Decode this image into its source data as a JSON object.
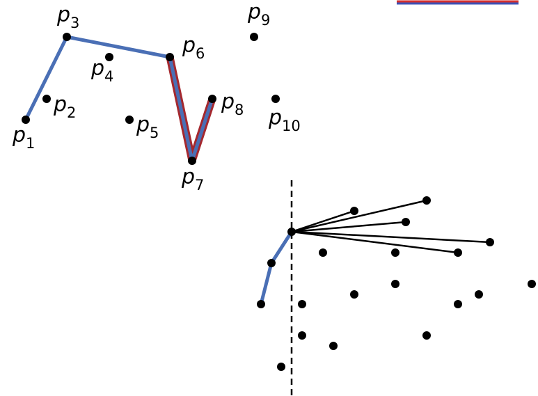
{
  "points": [
    {
      "name": "p1",
      "base": "p",
      "sub": "1"
    },
    {
      "name": "p2",
      "base": "p",
      "sub": "2"
    },
    {
      "name": "p3",
      "base": "p",
      "sub": "3"
    },
    {
      "name": "p4",
      "base": "p",
      "sub": "4"
    },
    {
      "name": "p5",
      "base": "p",
      "sub": "5"
    },
    {
      "name": "p6",
      "base": "p",
      "sub": "6"
    },
    {
      "name": "p7",
      "base": "p",
      "sub": "7"
    },
    {
      "name": "p8",
      "base": "p",
      "sub": "8"
    },
    {
      "name": "p9",
      "base": "p",
      "sub": "9"
    },
    {
      "name": "p10",
      "base": "p",
      "sub": "10"
    }
  ],
  "colors": {
    "hull_path": "#4a6fb5",
    "highlight_path": "#a5282e",
    "legend_top": "#d32f2f",
    "legend_bottom": "#3f51b5"
  }
}
